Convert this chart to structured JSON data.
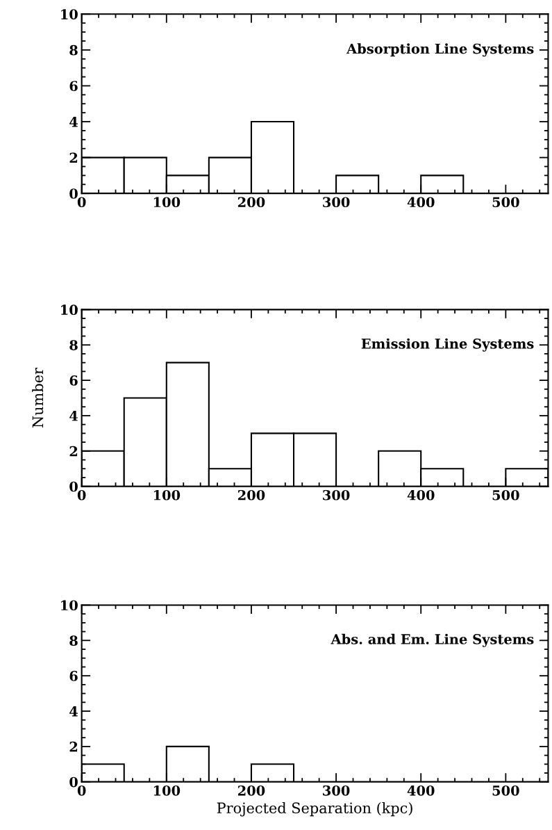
{
  "chart_data": [
    {
      "type": "histogram",
      "bins": [
        0,
        50,
        100,
        150,
        200,
        250,
        300,
        350,
        400,
        450,
        500,
        550
      ],
      "values": [
        2,
        2,
        1,
        2,
        4,
        0,
        1,
        0,
        1,
        0,
        0
      ],
      "annotations": [
        "Absorption Line Systems"
      ],
      "xlim": [
        0,
        550
      ],
      "ylim": [
        0,
        10
      ],
      "xticks": [
        0,
        100,
        200,
        300,
        400,
        500
      ],
      "yticks": [
        0,
        2,
        4,
        6,
        8,
        10
      ],
      "grid": false
    },
    {
      "type": "histogram",
      "bins": [
        0,
        50,
        100,
        150,
        200,
        250,
        300,
        350,
        400,
        450,
        500,
        550
      ],
      "values": [
        2,
        5,
        7,
        1,
        3,
        3,
        0,
        2,
        1,
        0,
        1
      ],
      "annotations": [
        "Emission Line Systems"
      ],
      "ylabel": "Number",
      "xlim": [
        0,
        550
      ],
      "ylim": [
        0,
        10
      ],
      "xticks": [
        0,
        100,
        200,
        300,
        400,
        500
      ],
      "yticks": [
        0,
        2,
        4,
        6,
        8,
        10
      ],
      "grid": false
    },
    {
      "type": "histogram",
      "bins": [
        0,
        50,
        100,
        150,
        200,
        250,
        300,
        350,
        400,
        450,
        500,
        550
      ],
      "values": [
        1,
        0,
        2,
        0,
        1,
        0,
        0,
        0,
        0,
        0,
        0
      ],
      "annotations": [
        "Abs. and Em. Line Systems"
      ],
      "xlabel": "Projected Separation (kpc)",
      "xlim": [
        0,
        550
      ],
      "ylim": [
        0,
        10
      ],
      "xticks": [
        0,
        100,
        200,
        300,
        400,
        500
      ],
      "yticks": [
        0,
        2,
        4,
        6,
        8,
        10
      ],
      "grid": false
    }
  ]
}
